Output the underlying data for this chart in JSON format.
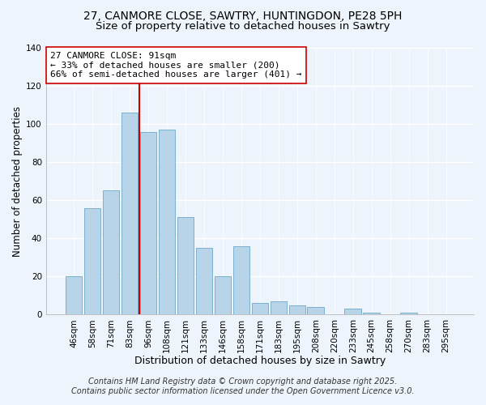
{
  "title": "27, CANMORE CLOSE, SAWTRY, HUNTINGDON, PE28 5PH",
  "subtitle": "Size of property relative to detached houses in Sawtry",
  "xlabel": "Distribution of detached houses by size in Sawtry",
  "ylabel": "Number of detached properties",
  "bar_labels": [
    "46sqm",
    "58sqm",
    "71sqm",
    "83sqm",
    "96sqm",
    "108sqm",
    "121sqm",
    "133sqm",
    "146sqm",
    "158sqm",
    "171sqm",
    "183sqm",
    "195sqm",
    "208sqm",
    "220sqm",
    "233sqm",
    "245sqm",
    "258sqm",
    "270sqm",
    "283sqm",
    "295sqm"
  ],
  "bar_values": [
    20,
    56,
    65,
    106,
    96,
    97,
    51,
    35,
    20,
    36,
    6,
    7,
    5,
    4,
    0,
    3,
    1,
    0,
    1,
    0,
    0
  ],
  "bar_color": "#b8d4e8",
  "bar_edge_color": "#7ab0ce",
  "vline_x_index": 4,
  "vline_color": "#cc0000",
  "annotation_text": "27 CANMORE CLOSE: 91sqm\n← 33% of detached houses are smaller (200)\n66% of semi-detached houses are larger (401) →",
  "annotation_box_color": "#ffffff",
  "annotation_box_edge": "#cc0000",
  "ylim": [
    0,
    140
  ],
  "yticks": [
    0,
    20,
    40,
    60,
    80,
    100,
    120,
    140
  ],
  "footnote1": "Contains HM Land Registry data © Crown copyright and database right 2025.",
  "footnote2": "Contains public sector information licensed under the Open Government Licence v3.0.",
  "background_color": "#eef4fb",
  "grid_color": "#ffffff",
  "title_fontsize": 10,
  "subtitle_fontsize": 9.5,
  "xlabel_fontsize": 9,
  "ylabel_fontsize": 8.5,
  "tick_fontsize": 7.5,
  "annotation_fontsize": 8,
  "footnote_fontsize": 7
}
